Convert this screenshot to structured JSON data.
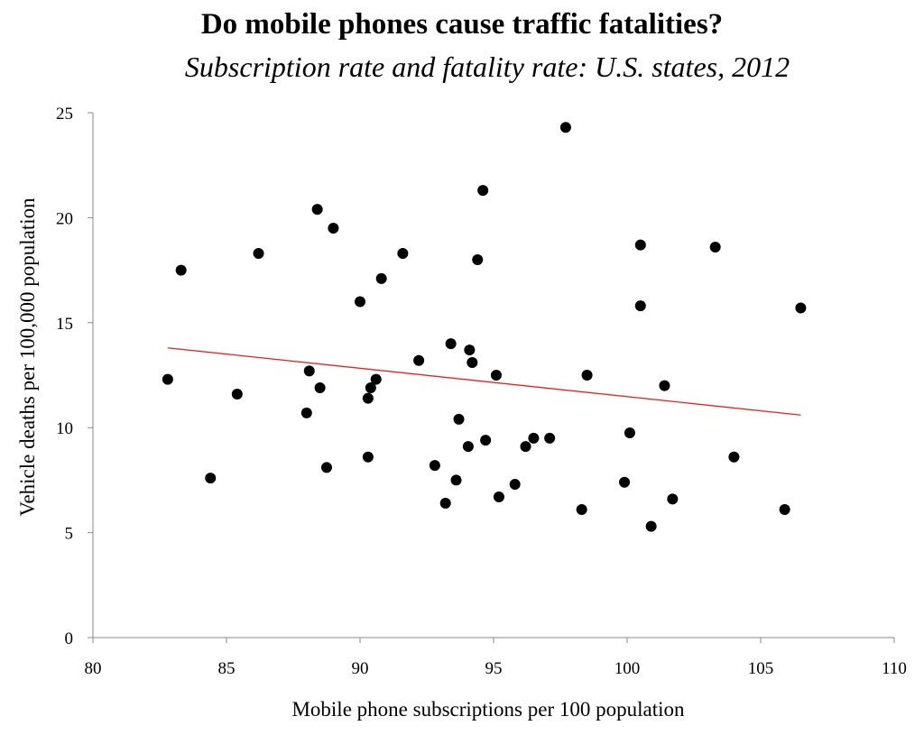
{
  "chart_data": {
    "type": "scatter",
    "title": "Do mobile phones cause traffic fatalities?",
    "subtitle": "Subscription rate and fatality rate: U.S. states, 2012",
    "x_label": "Mobile phone subscriptions per 100 population",
    "y_label": "Vehicle deaths per 100,000 population",
    "xlim": [
      80,
      110
    ],
    "xticks": [
      80,
      85,
      90,
      95,
      100,
      105,
      110
    ],
    "ylim": [
      0,
      25
    ],
    "yticks": [
      0,
      5,
      10,
      15,
      20,
      25
    ],
    "grid": false,
    "series": [
      {
        "color": "#000000",
        "x": [
          82.8,
          83.3,
          84.4,
          85.4,
          86.2,
          88.0,
          88.1,
          88.4,
          88.5,
          88.75,
          89.0,
          90.0,
          90.3,
          90.3,
          90.4,
          90.6,
          90.8,
          91.6,
          92.2,
          92.8,
          93.2,
          93.4,
          93.6,
          93.7,
          94.05,
          94.1,
          94.2,
          94.4,
          94.6,
          94.7,
          95.1,
          95.2,
          95.8,
          96.2,
          96.5,
          97.1,
          97.7,
          98.3,
          98.5,
          99.9,
          100.1,
          100.5,
          100.5,
          100.9,
          101.4,
          101.7,
          103.3,
          104.0,
          105.9,
          106.5
        ],
        "values": [
          12.3,
          17.5,
          7.6,
          11.6,
          18.3,
          10.7,
          12.7,
          20.4,
          11.9,
          8.1,
          19.5,
          16.0,
          11.4,
          8.6,
          11.9,
          12.3,
          17.1,
          18.3,
          13.2,
          8.2,
          6.4,
          14.0,
          7.5,
          10.4,
          9.1,
          13.7,
          13.1,
          18.0,
          21.3,
          9.4,
          12.5,
          6.7,
          7.3,
          9.1,
          9.5,
          9.5,
          24.3,
          6.1,
          12.5,
          7.4,
          9.75,
          18.7,
          15.8,
          5.3,
          12.0,
          6.6,
          18.6,
          8.6,
          6.1,
          15.7
        ]
      }
    ],
    "trendline": {
      "color": "#e8231f",
      "x": [
        82.8,
        106.5
      ],
      "values": [
        13.8,
        10.6
      ]
    }
  }
}
